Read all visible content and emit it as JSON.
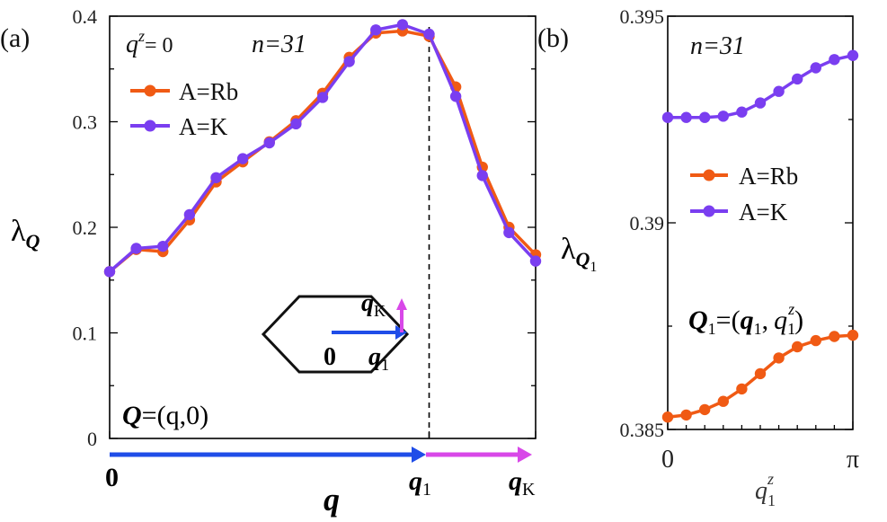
{
  "chart_data": [
    {
      "panel": "a",
      "type": "line",
      "panel_label": "(a)",
      "ylabel": "λ",
      "ylabel_sub": "Q",
      "annotation_qz_sym": "q",
      "annotation_qz_sup": "z",
      "annotation_qz_rest": "= 0",
      "annotation_n": "n=31",
      "annotation_Q_bold": "Q",
      "annotation_Q_rest": "=(q,0)",
      "ylim": [
        0,
        0.4
      ],
      "yticks": [
        0,
        0.1,
        0.2,
        0.3,
        0.4
      ],
      "ytick_labels": [
        "0",
        "0.1",
        "0.2",
        "0.3",
        "0.4"
      ],
      "xlim": [
        0,
        16
      ],
      "x_marker_q1": 12,
      "x_marker_qK": 16,
      "xaxis_labels": {
        "origin": "0",
        "q": "q",
        "q1": "q",
        "q1_sub": "1",
        "qK": "q",
        "qK_sub": "K"
      },
      "inset": {
        "origin": "0",
        "q1": "q",
        "q1_sub": "1",
        "qK": "q",
        "qK_sub": "K"
      },
      "x": [
        0,
        1,
        2,
        3,
        4,
        5,
        6,
        7,
        8,
        9,
        10,
        11,
        12,
        13,
        14,
        15,
        16
      ],
      "series": [
        {
          "name": "A=Rb",
          "color": "#f05a14",
          "values": [
            0.158,
            0.179,
            0.177,
            0.207,
            0.243,
            0.262,
            0.281,
            0.301,
            0.327,
            0.361,
            0.384,
            0.386,
            0.381,
            0.333,
            0.257,
            0.2,
            0.174
          ]
        },
        {
          "name": "A=K",
          "color": "#7a3ef0",
          "values": [
            0.158,
            0.18,
            0.182,
            0.212,
            0.247,
            0.265,
            0.28,
            0.298,
            0.323,
            0.357,
            0.387,
            0.392,
            0.383,
            0.324,
            0.249,
            0.195,
            0.168
          ]
        }
      ]
    },
    {
      "panel": "b",
      "type": "line",
      "panel_label": "(b)",
      "ylabel": "λ",
      "ylabel_sub": "Q",
      "ylabel_subsub": "1",
      "annotation_n": "n=31",
      "annotation_Q1": "Q",
      "annotation_Q1_sub": "1",
      "annotation_Q1_mid": "=(",
      "annotation_Q1_q": "q",
      "annotation_Q1_q_sub": "1",
      "annotation_Q1_comma": ",",
      "annotation_Q1_qz": "q",
      "annotation_Q1_qz_sub": "1",
      "annotation_Q1_qz_sup": "z",
      "annotation_Q1_end": ")",
      "xlabel": "q",
      "xlabel_sub": "1",
      "xlabel_sup": "z",
      "xtick_labels": [
        "0",
        "π"
      ],
      "xlim": [
        0,
        3.14159
      ],
      "ylim": [
        0.385,
        0.395
      ],
      "yticks": [
        0.385,
        0.39,
        0.395
      ],
      "ytick_labels": [
        "0.385",
        "0.39",
        "0.395"
      ],
      "x": [
        0.0,
        0.3142,
        0.6283,
        0.9425,
        1.2566,
        1.5708,
        1.885,
        2.1991,
        2.5133,
        2.8274,
        3.1416
      ],
      "series": [
        {
          "name": "A=Rb",
          "color": "#f05a14",
          "values": [
            0.3853,
            0.38535,
            0.38548,
            0.38568,
            0.38598,
            0.38635,
            0.38673,
            0.387,
            0.38715,
            0.38725,
            0.38728
          ]
        },
        {
          "name": "A=K",
          "color": "#7a3ef0",
          "values": [
            0.39255,
            0.39255,
            0.39255,
            0.39258,
            0.39268,
            0.3929,
            0.39318,
            0.39348,
            0.39375,
            0.39395,
            0.39405
          ]
        }
      ]
    }
  ]
}
